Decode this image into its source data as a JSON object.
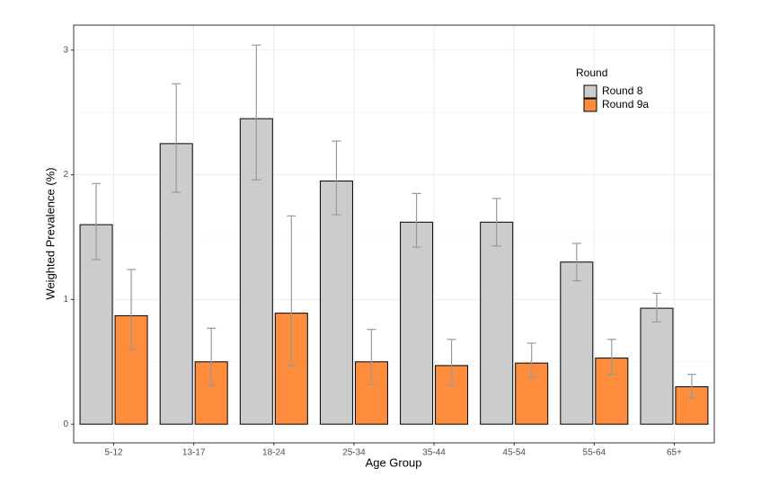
{
  "chart_data": {
    "type": "bar",
    "x_label": "Age Group",
    "y_label": "Weighted Prevalence (%)",
    "categories": [
      "5-12",
      "13-17",
      "18-24",
      "25-34",
      "35-44",
      "45-54",
      "55-64",
      "65+"
    ],
    "series": [
      {
        "name": "Round 8",
        "color": "#cccccc",
        "values": [
          1.6,
          2.25,
          2.45,
          1.95,
          1.62,
          1.62,
          1.3,
          0.93
        ],
        "lower": [
          1.32,
          1.86,
          1.96,
          1.68,
          1.42,
          1.43,
          1.15,
          0.82
        ],
        "upper": [
          1.93,
          2.73,
          3.04,
          2.27,
          1.85,
          1.81,
          1.45,
          1.05
        ]
      },
      {
        "name": "Round 9a",
        "color": "#fd8d3c",
        "values": [
          0.87,
          0.5,
          0.89,
          0.5,
          0.47,
          0.49,
          0.53,
          0.3
        ],
        "lower": [
          0.6,
          0.31,
          0.47,
          0.32,
          0.31,
          0.37,
          0.4,
          0.21
        ],
        "upper": [
          1.24,
          0.77,
          1.67,
          0.76,
          0.68,
          0.65,
          0.68,
          0.4
        ]
      }
    ],
    "ylim": [
      -0.15,
      3.2
    ],
    "yticks": [
      0,
      1,
      2,
      3
    ],
    "grid": true,
    "legend_title": "Round",
    "legend_position": "top-right"
  }
}
